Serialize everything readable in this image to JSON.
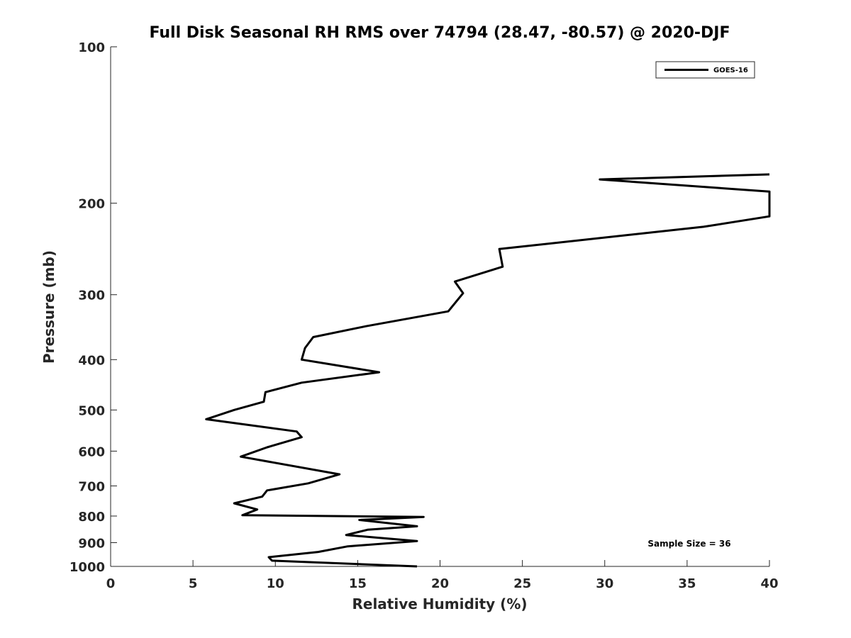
{
  "chart_data": {
    "type": "line",
    "title": "Full Disk Seasonal RH RMS over 74794 (28.47, -80.57) @ 2020-DJF",
    "xlabel": "Relative Humidity (%)",
    "ylabel": "Pressure (mb)",
    "xlim": [
      0,
      40
    ],
    "ylim": [
      100,
      1000
    ],
    "y_scale": "log",
    "y_reversed": true,
    "x_ticks": [
      0,
      5,
      10,
      15,
      20,
      25,
      30,
      35,
      40
    ],
    "y_ticks": [
      100,
      200,
      300,
      400,
      500,
      600,
      700,
      800,
      900,
      1000
    ],
    "grid": false,
    "legend": {
      "position": "top-right",
      "entries": [
        "GOES-16"
      ]
    },
    "annotation": "Sample Size = 36",
    "series": [
      {
        "name": "GOES-16",
        "color": "#000000",
        "x": [
          40.0,
          29.7,
          40.0,
          40.0,
          36.0,
          23.6,
          23.8,
          20.9,
          21.4,
          20.5,
          15.5,
          12.3,
          11.8,
          11.6,
          16.3,
          11.6,
          9.4,
          9.3,
          7.5,
          5.8,
          11.3,
          11.6,
          9.5,
          7.9,
          13.9,
          12.0,
          9.5,
          9.2,
          7.5,
          8.9,
          8.0,
          19.0,
          15.1,
          18.6,
          15.6,
          14.3,
          18.6,
          14.4,
          12.6,
          9.6,
          9.8,
          18.6
        ],
        "y": [
          176,
          180,
          190,
          212,
          222,
          245,
          265,
          283,
          298,
          323,
          345,
          362,
          380,
          400,
          423,
          443,
          462,
          482,
          500,
          521,
          550,
          564,
          590,
          615,
          665,
          692,
          714,
          734,
          756,
          777,
          797,
          803,
          814,
          837,
          850,
          870,
          894,
          915,
          938,
          960,
          975,
          1000
        ]
      }
    ]
  }
}
